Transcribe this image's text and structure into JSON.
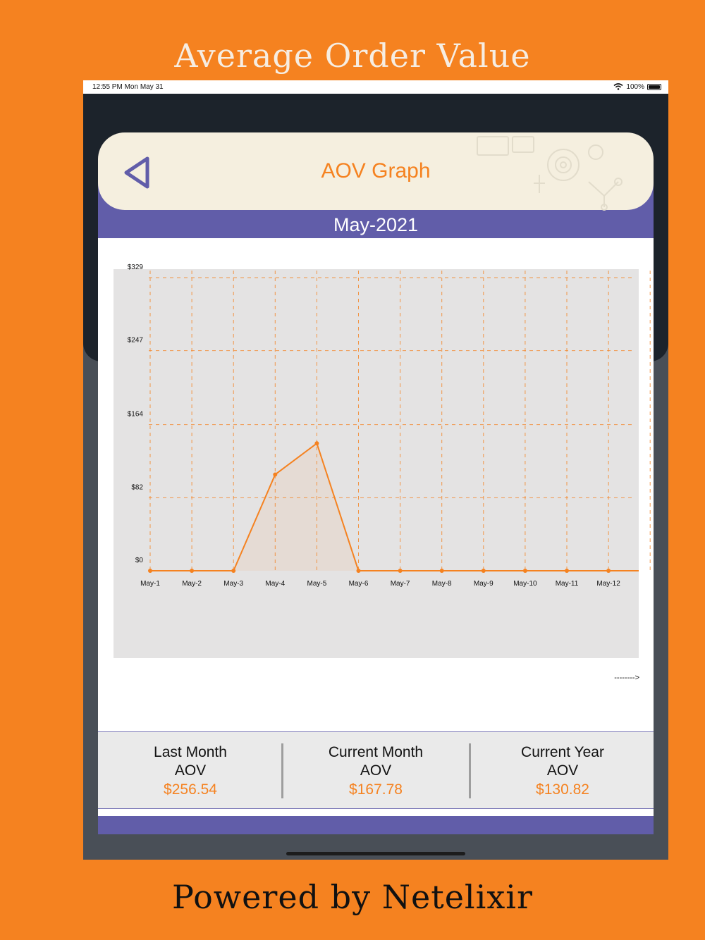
{
  "promo": {
    "title": "Average Order Value",
    "footer": "Powered by Netelixir"
  },
  "status_bar": {
    "time": "12:55 PM  Mon May 31",
    "battery": "100%"
  },
  "header": {
    "title": "AOV Graph",
    "back_icon": "back-triangle-icon"
  },
  "month_label": "May-2021",
  "colors": {
    "accent": "#F58220",
    "band": "#615DA9",
    "header_bg": "#F5EFDF",
    "dark": "#1C232B"
  },
  "chart_data": {
    "type": "area",
    "x": [
      "May-1",
      "May-2",
      "May-3",
      "May-4",
      "May-5",
      "May-6",
      "May-7",
      "May-8",
      "May-9",
      "May-10",
      "May-11",
      "May-12"
    ],
    "series": [
      {
        "values": [
          0,
          0,
          0,
          108,
          143,
          0,
          0,
          0,
          0,
          0,
          0,
          0
        ]
      }
    ],
    "y_ticks": [
      "$0",
      "$82",
      "$164",
      "$247",
      "$329"
    ],
    "y_tick_values": [
      0,
      82,
      164,
      247,
      329
    ],
    "ylim": [
      0,
      329
    ],
    "grid": true,
    "title": "",
    "xlabel": "",
    "ylabel": ""
  },
  "scroll_hint": "-------->",
  "summary": [
    {
      "label_line1": "Last Month",
      "label_line2": "AOV",
      "value": "$256.54"
    },
    {
      "label_line1": "Current Month",
      "label_line2": "AOV",
      "value": "$167.78"
    },
    {
      "label_line1": "Current Year",
      "label_line2": "AOV",
      "value": "$130.82"
    }
  ]
}
